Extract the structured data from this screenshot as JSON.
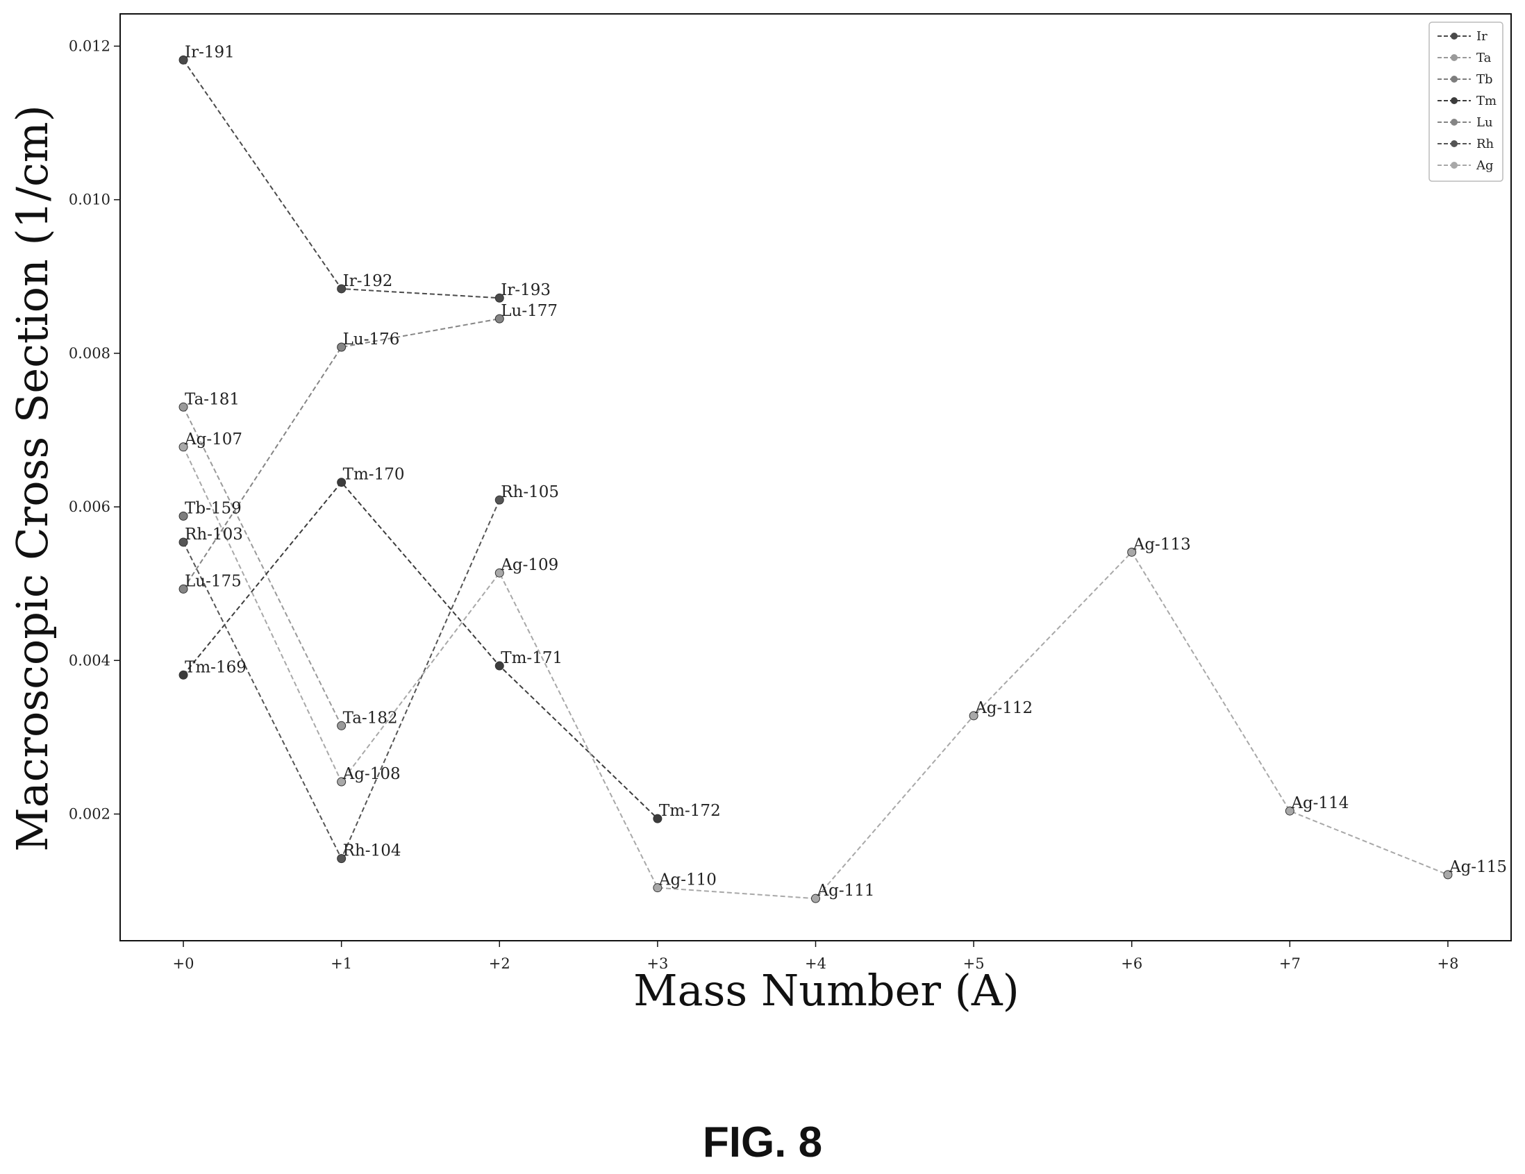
{
  "figure_caption": "FIG. 8",
  "colors": {
    "Ir": "#4a4a4a",
    "Ta": "#9a9a9a",
    "Tb": "#7d7d7d",
    "Tm": "#3c3c3c",
    "Lu": "#858585",
    "Rh": "#555555",
    "Ag": "#a8a8a8"
  },
  "chart_data": {
    "type": "line",
    "title": "",
    "xlabel": "Mass Number (A)",
    "ylabel": "Macroscopic Cross Section (1/cm)",
    "x_ticks": [
      "+0",
      "+1",
      "+2",
      "+3",
      "+4",
      "+5",
      "+6",
      "+7",
      "+8"
    ],
    "y_ticks": [
      "0.002",
      "0.004",
      "0.006",
      "0.008",
      "0.010",
      "0.012"
    ],
    "xlim": [
      -0.4,
      8.4
    ],
    "ylim": [
      0.00035,
      0.01242
    ],
    "grid": false,
    "legend_position": "top-right",
    "series": [
      {
        "name": "Ir",
        "x": [
          0,
          1,
          2
        ],
        "y": [
          0.01182,
          0.00884,
          0.00872
        ],
        "labels": [
          "Ir-191",
          "Ir-192",
          "Ir-193"
        ]
      },
      {
        "name": "Ta",
        "x": [
          0,
          1
        ],
        "y": [
          0.0073,
          0.00315
        ],
        "labels": [
          "Ta-181",
          "Ta-182"
        ]
      },
      {
        "name": "Tb",
        "x": [
          0
        ],
        "y": [
          0.00588
        ],
        "labels": [
          "Tb-159"
        ]
      },
      {
        "name": "Tm",
        "x": [
          0,
          1,
          2,
          3
        ],
        "y": [
          0.00381,
          0.00632,
          0.00393,
          0.00194
        ],
        "labels": [
          "Tm-169",
          "Tm-170",
          "Tm-171",
          "Tm-172"
        ]
      },
      {
        "name": "Lu",
        "x": [
          0,
          1,
          2
        ],
        "y": [
          0.00493,
          0.00808,
          0.00845
        ],
        "labels": [
          "Lu-175",
          "Lu-176",
          "Lu-177"
        ]
      },
      {
        "name": "Rh",
        "x": [
          0,
          1,
          2
        ],
        "y": [
          0.00554,
          0.00142,
          0.00609
        ],
        "labels": [
          "Rh-103",
          "Rh-104",
          "Rh-105"
        ]
      },
      {
        "name": "Ag",
        "x": [
          0,
          1,
          2,
          3,
          4,
          5,
          6,
          7,
          8
        ],
        "y": [
          0.00678,
          0.00242,
          0.00514,
          0.00104,
          0.0009,
          0.00328,
          0.00541,
          0.00204,
          0.00121
        ],
        "labels": [
          "Ag-107",
          "Ag-108",
          "Ag-109",
          "Ag-110",
          "Ag-111",
          "Ag-112",
          "Ag-113",
          "Ag-114",
          "Ag-115"
        ]
      }
    ]
  }
}
